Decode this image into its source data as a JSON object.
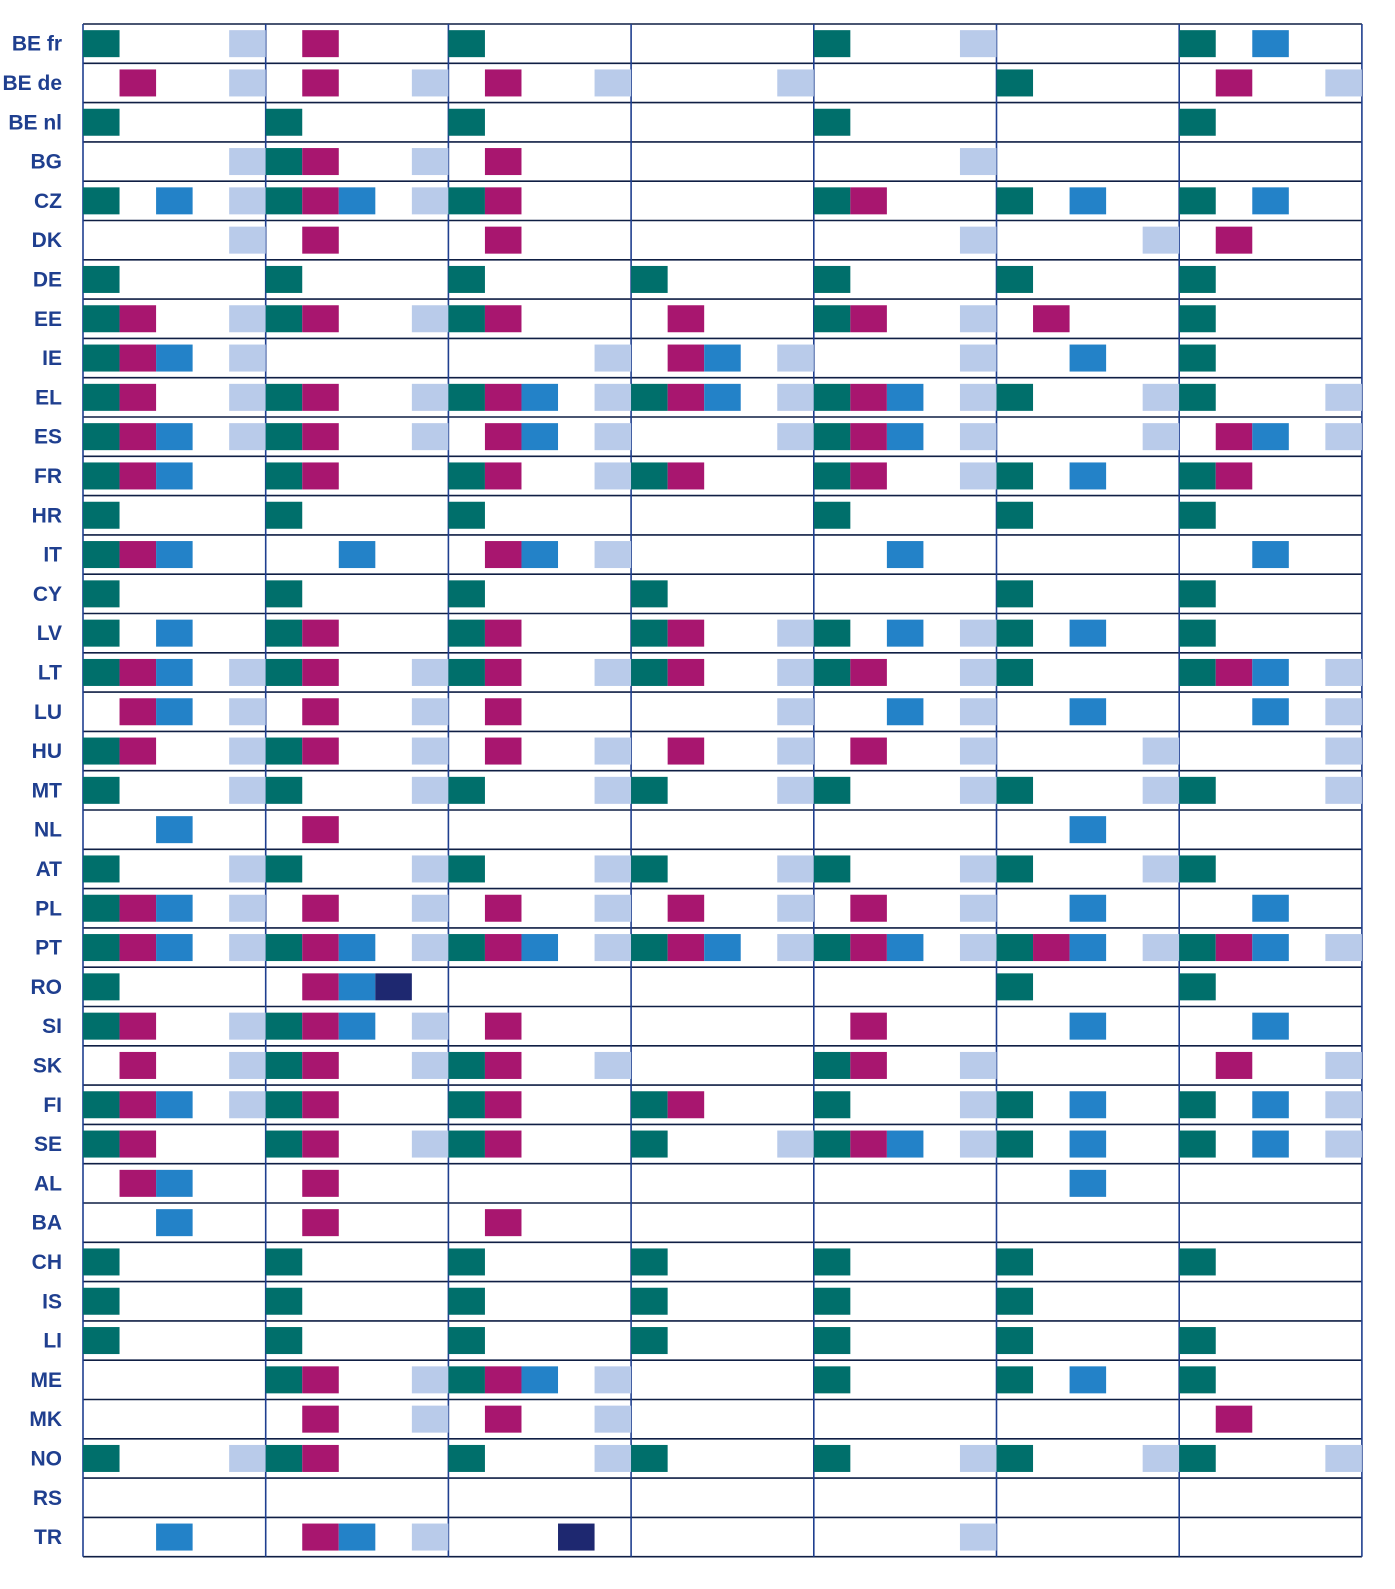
{
  "chart_data": {
    "type": "heatmap",
    "title": "",
    "xlabel": "",
    "ylabel": "",
    "columns": 7,
    "slots_per_column": 5,
    "colors": {
      "1": "#006f6b",
      "2": "#a8166f",
      "3": "#2382c8",
      "4": "#1e2870",
      "5": "#b9cbea"
    },
    "rows": [
      {
        "label": "BE fr",
        "cells": [
          [
            1,
            5
          ],
          [
            2
          ],
          [
            1
          ],
          [],
          [
            1,
            5
          ],
          [],
          [
            1,
            3
          ]
        ]
      },
      {
        "label": "BE de",
        "cells": [
          [
            2,
            5
          ],
          [
            2,
            5
          ],
          [
            2,
            5
          ],
          [
            5
          ],
          [],
          [
            1
          ],
          [
            2,
            5
          ]
        ]
      },
      {
        "label": "BE nl",
        "cells": [
          [
            1
          ],
          [
            1
          ],
          [
            1
          ],
          [],
          [
            1
          ],
          [],
          [
            1
          ]
        ]
      },
      {
        "label": "BG",
        "cells": [
          [
            5
          ],
          [
            1,
            2,
            5
          ],
          [
            2
          ],
          [],
          [
            5
          ],
          [],
          []
        ]
      },
      {
        "label": "CZ",
        "cells": [
          [
            1,
            3,
            5
          ],
          [
            1,
            2,
            3,
            5
          ],
          [
            1,
            2
          ],
          [],
          [
            1,
            2
          ],
          [
            1,
            3
          ],
          [
            1,
            3
          ]
        ]
      },
      {
        "label": "DK",
        "cells": [
          [
            5
          ],
          [
            2
          ],
          [
            2
          ],
          [],
          [
            5
          ],
          [
            5
          ],
          [
            2
          ]
        ]
      },
      {
        "label": "DE",
        "cells": [
          [
            1
          ],
          [
            1
          ],
          [
            1
          ],
          [
            1
          ],
          [
            1
          ],
          [
            1
          ],
          [
            1
          ]
        ]
      },
      {
        "label": "EE",
        "cells": [
          [
            1,
            2,
            5
          ],
          [
            1,
            2,
            5
          ],
          [
            1,
            2
          ],
          [
            2
          ],
          [
            1,
            2,
            5
          ],
          [
            2
          ],
          [
            1
          ]
        ]
      },
      {
        "label": "IE",
        "cells": [
          [
            1,
            2,
            3,
            5
          ],
          [],
          [
            5
          ],
          [
            2,
            3,
            5
          ],
          [
            5
          ],
          [
            3
          ],
          [
            1
          ]
        ]
      },
      {
        "label": "EL",
        "cells": [
          [
            1,
            2,
            5
          ],
          [
            1,
            2,
            5
          ],
          [
            1,
            2,
            3,
            5
          ],
          [
            1,
            2,
            3,
            5
          ],
          [
            1,
            2,
            3,
            5
          ],
          [
            1,
            5
          ],
          [
            1,
            5
          ]
        ]
      },
      {
        "label": "ES",
        "cells": [
          [
            1,
            2,
            3,
            5
          ],
          [
            1,
            2,
            5
          ],
          [
            2,
            3,
            5
          ],
          [
            5
          ],
          [
            1,
            2,
            3,
            5
          ],
          [
            5
          ],
          [
            2,
            3,
            5
          ]
        ]
      },
      {
        "label": "FR",
        "cells": [
          [
            1,
            2,
            3
          ],
          [
            1,
            2
          ],
          [
            1,
            2,
            5
          ],
          [
            1,
            2
          ],
          [
            1,
            2,
            5
          ],
          [
            1,
            3
          ],
          [
            1,
            2
          ]
        ]
      },
      {
        "label": "HR",
        "cells": [
          [
            1
          ],
          [
            1
          ],
          [
            1
          ],
          [],
          [
            1
          ],
          [
            1
          ],
          [
            1
          ]
        ]
      },
      {
        "label": "IT",
        "cells": [
          [
            1,
            2,
            3
          ],
          [
            3
          ],
          [
            2,
            3,
            5
          ],
          [],
          [
            3
          ],
          [],
          [
            3
          ]
        ]
      },
      {
        "label": "CY",
        "cells": [
          [
            1
          ],
          [
            1
          ],
          [
            1
          ],
          [
            1
          ],
          [],
          [
            1
          ],
          [
            1
          ]
        ]
      },
      {
        "label": "LV",
        "cells": [
          [
            1,
            3
          ],
          [
            1,
            2
          ],
          [
            1,
            2
          ],
          [
            1,
            2,
            5
          ],
          [
            1,
            3,
            5
          ],
          [
            1,
            3
          ],
          [
            1
          ]
        ]
      },
      {
        "label": "LT",
        "cells": [
          [
            1,
            2,
            3,
            5
          ],
          [
            1,
            2,
            5
          ],
          [
            1,
            2,
            5
          ],
          [
            1,
            2,
            5
          ],
          [
            1,
            2,
            5
          ],
          [
            1
          ],
          [
            1,
            2,
            3,
            5
          ]
        ]
      },
      {
        "label": "LU",
        "cells": [
          [
            2,
            3,
            5
          ],
          [
            2,
            5
          ],
          [
            2
          ],
          [
            5
          ],
          [
            3,
            5
          ],
          [
            3
          ],
          [
            3,
            5
          ]
        ]
      },
      {
        "label": "HU",
        "cells": [
          [
            1,
            2,
            5
          ],
          [
            1,
            2,
            5
          ],
          [
            2,
            5
          ],
          [
            2,
            5
          ],
          [
            2,
            5
          ],
          [
            5
          ],
          [
            5
          ]
        ]
      },
      {
        "label": "MT",
        "cells": [
          [
            1,
            5
          ],
          [
            1,
            5
          ],
          [
            1,
            5
          ],
          [
            1,
            5
          ],
          [
            1,
            5
          ],
          [
            1,
            5
          ],
          [
            1,
            5
          ]
        ]
      },
      {
        "label": "NL",
        "cells": [
          [
            3
          ],
          [
            2
          ],
          [],
          [],
          [],
          [
            3
          ],
          []
        ]
      },
      {
        "label": "AT",
        "cells": [
          [
            1,
            5
          ],
          [
            1,
            5
          ],
          [
            1,
            5
          ],
          [
            1,
            5
          ],
          [
            1,
            5
          ],
          [
            1,
            5
          ],
          [
            1
          ]
        ]
      },
      {
        "label": "PL",
        "cells": [
          [
            1,
            2,
            3,
            5
          ],
          [
            2,
            5
          ],
          [
            2,
            5
          ],
          [
            2,
            5
          ],
          [
            2,
            5
          ],
          [
            3
          ],
          [
            3
          ]
        ]
      },
      {
        "label": "PT",
        "cells": [
          [
            1,
            2,
            3,
            5
          ],
          [
            1,
            2,
            3,
            5
          ],
          [
            1,
            2,
            3,
            5
          ],
          [
            1,
            2,
            3,
            5
          ],
          [
            1,
            2,
            3,
            5
          ],
          [
            1,
            2,
            3,
            5
          ],
          [
            1,
            2,
            3,
            5
          ]
        ]
      },
      {
        "label": "RO",
        "cells": [
          [
            1
          ],
          [
            2,
            3,
            4
          ],
          [],
          [],
          [],
          [
            1
          ],
          [
            1
          ]
        ]
      },
      {
        "label": "SI",
        "cells": [
          [
            1,
            2,
            5
          ],
          [
            1,
            2,
            3,
            5
          ],
          [
            2
          ],
          [],
          [
            2
          ],
          [
            3
          ],
          [
            3
          ]
        ]
      },
      {
        "label": "SK",
        "cells": [
          [
            2,
            5
          ],
          [
            1,
            2,
            5
          ],
          [
            1,
            2,
            5
          ],
          [],
          [
            1,
            2,
            5
          ],
          [],
          [
            2,
            5
          ]
        ]
      },
      {
        "label": "FI",
        "cells": [
          [
            1,
            2,
            3,
            5
          ],
          [
            1,
            2
          ],
          [
            1,
            2
          ],
          [
            1,
            2
          ],
          [
            1,
            5
          ],
          [
            1,
            3
          ],
          [
            1,
            3,
            5
          ]
        ]
      },
      {
        "label": "SE",
        "cells": [
          [
            1,
            2
          ],
          [
            1,
            2,
            5
          ],
          [
            1,
            2
          ],
          [
            1,
            5
          ],
          [
            1,
            2,
            3,
            5
          ],
          [
            1,
            3
          ],
          [
            1,
            3,
            5
          ]
        ]
      },
      {
        "label": "AL",
        "cells": [
          [
            2,
            3
          ],
          [
            2
          ],
          [],
          [],
          [],
          [
            3
          ],
          []
        ]
      },
      {
        "label": "BA",
        "cells": [
          [
            3
          ],
          [
            2
          ],
          [
            2
          ],
          [],
          [],
          [],
          []
        ]
      },
      {
        "label": "CH",
        "cells": [
          [
            1
          ],
          [
            1
          ],
          [
            1
          ],
          [
            1
          ],
          [
            1
          ],
          [
            1
          ],
          [
            1
          ]
        ]
      },
      {
        "label": "IS",
        "cells": [
          [
            1
          ],
          [
            1
          ],
          [
            1
          ],
          [
            1
          ],
          [
            1
          ],
          [
            1
          ],
          []
        ]
      },
      {
        "label": "LI",
        "cells": [
          [
            1
          ],
          [
            1
          ],
          [
            1
          ],
          [
            1
          ],
          [
            1
          ],
          [
            1
          ],
          [
            1
          ]
        ]
      },
      {
        "label": "ME",
        "cells": [
          [],
          [
            1,
            2,
            5
          ],
          [
            1,
            2,
            3,
            5
          ],
          [],
          [
            1
          ],
          [
            1,
            3
          ],
          [
            1
          ]
        ]
      },
      {
        "label": "MK",
        "cells": [
          [],
          [
            2,
            5
          ],
          [
            2,
            5
          ],
          [],
          [],
          [],
          [
            2
          ]
        ]
      },
      {
        "label": "NO",
        "cells": [
          [
            1,
            5
          ],
          [
            1,
            2
          ],
          [
            1,
            5
          ],
          [
            1
          ],
          [
            1,
            5
          ],
          [
            1,
            5
          ],
          [
            1,
            5
          ]
        ]
      },
      {
        "label": "RS",
        "cells": [
          [],
          [],
          [],
          [],
          [],
          [],
          []
        ]
      },
      {
        "label": "TR",
        "cells": [
          [
            3
          ],
          [
            2,
            3,
            5
          ],
          [
            4
          ],
          [],
          [
            5
          ],
          [],
          []
        ]
      }
    ]
  }
}
